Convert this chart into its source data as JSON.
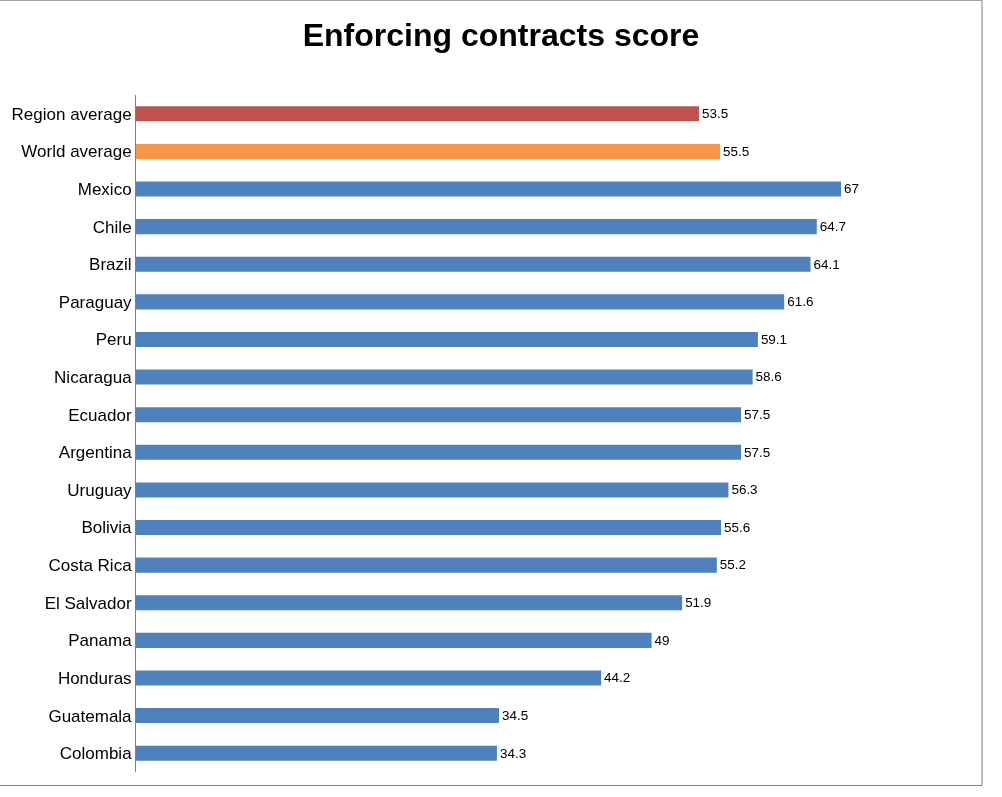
{
  "chart_data": {
    "type": "bar",
    "title": "Enforcing contracts score",
    "orientation": "horizontal",
    "categories": [
      "Region average",
      "World average",
      "Mexico",
      "Chile",
      "Brazil",
      "Paraguay",
      "Peru",
      "Nicaragua",
      "Ecuador",
      "Argentina",
      "Uruguay",
      "Bolivia",
      "Costa Rica",
      "El Salvador",
      "Panama",
      "Honduras",
      "Guatemala",
      "Colombia"
    ],
    "values": [
      53.5,
      55.5,
      67,
      64.7,
      64.1,
      61.6,
      59.1,
      58.6,
      57.5,
      57.5,
      56.3,
      55.6,
      55.2,
      51.9,
      49,
      44.2,
      34.5,
      34.3
    ],
    "colors": [
      "#c0504d",
      "#f79646",
      "#4f81bd",
      "#4f81bd",
      "#4f81bd",
      "#4f81bd",
      "#4f81bd",
      "#4f81bd",
      "#4f81bd",
      "#4f81bd",
      "#4f81bd",
      "#4f81bd",
      "#4f81bd",
      "#4f81bd",
      "#4f81bd",
      "#4f81bd",
      "#4f81bd",
      "#4f81bd"
    ],
    "data_labels": true,
    "tick_labels": "y"
  }
}
